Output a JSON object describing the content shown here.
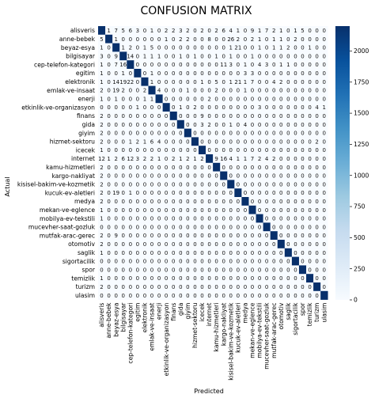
{
  "chart_data": {
    "type": "heatmap",
    "title": "CONFUSION MATRIX",
    "xlabel": "Predicted",
    "ylabel": "Actual",
    "labels": [
      "alisveris",
      "anne-bebek",
      "beyaz-esya",
      "bilgisayar",
      "cep-telefon-kategori",
      "egitim",
      "elektronik",
      "emlak-ve-insaat",
      "enerji",
      "etkinlik-ve-organizasyon",
      "finans",
      "gida",
      "giyim",
      "hizmet-sektoru",
      "icecek",
      "internet",
      "kamu-hizmetleri",
      "kargo-nakliyat",
      "kisisel-bakim-ve-kozmetik",
      "kucuk-ev-aletleri",
      "medya",
      "mekan-ve-eglence",
      "mobilya-ev-tekstili",
      "mucevher-saat-gozluk",
      "mutfak-arac-gerec",
      "otomotiv",
      "saglik",
      "sigortacilik",
      "spor",
      "temizlik",
      "turizm",
      "ulasim"
    ],
    "matrix": [
      [
        2200,
        1,
        7,
        5,
        6,
        3,
        0,
        1,
        0,
        2,
        2,
        3,
        2,
        0,
        2,
        0,
        2,
        6,
        4,
        1,
        0,
        9,
        1,
        7,
        2,
        1,
        0,
        1,
        5,
        0,
        0,
        0
      ],
      [
        5,
        2200,
        1,
        0,
        0,
        0,
        0,
        0,
        0,
        1,
        0,
        2,
        2,
        0,
        0,
        8,
        0,
        0,
        26,
        2,
        0,
        2,
        1,
        0,
        1,
        1,
        0,
        2,
        0,
        0,
        0,
        0
      ],
      [
        1,
        0,
        2200,
        1,
        2,
        0,
        1,
        5,
        0,
        0,
        0,
        0,
        0,
        0,
        0,
        0,
        0,
        0,
        1,
        21,
        0,
        0,
        1,
        0,
        1,
        1,
        2,
        0,
        0,
        1,
        0,
        0
      ],
      [
        3,
        0,
        9,
        2200,
        14,
        0,
        1,
        1,
        1,
        0,
        0,
        1,
        0,
        1,
        0,
        0,
        1,
        0,
        1,
        0,
        0,
        1,
        0,
        0,
        0,
        0,
        0,
        0,
        0,
        0,
        0,
        0
      ],
      [
        1,
        0,
        7,
        16,
        2200,
        0,
        0,
        0,
        0,
        0,
        0,
        0,
        0,
        0,
        0,
        0,
        0,
        11,
        3,
        0,
        1,
        0,
        4,
        3,
        0,
        1,
        1,
        0,
        0,
        0,
        0,
        0
      ],
      [
        1,
        0,
        0,
        1,
        0,
        2200,
        0,
        1,
        0,
        0,
        0,
        0,
        0,
        0,
        0,
        0,
        0,
        0,
        0,
        0,
        3,
        3,
        0,
        0,
        0,
        0,
        0,
        0,
        0,
        0,
        0,
        0
      ],
      [
        1,
        0,
        14,
        19,
        22,
        0,
        2200,
        1,
        0,
        0,
        0,
        0,
        0,
        0,
        1,
        0,
        5,
        0,
        1,
        21,
        1,
        7,
        0,
        0,
        4,
        2,
        0,
        0,
        0,
        0,
        0,
        0
      ],
      [
        2,
        0,
        19,
        2,
        0,
        0,
        2,
        2200,
        4,
        0,
        0,
        0,
        1,
        0,
        0,
        0,
        2,
        0,
        0,
        0,
        1,
        0,
        0,
        0,
        0,
        0,
        0,
        0,
        0,
        0,
        0,
        0
      ],
      [
        1,
        0,
        1,
        0,
        0,
        0,
        1,
        1,
        2200,
        0,
        0,
        0,
        0,
        0,
        0,
        2,
        0,
        0,
        0,
        0,
        0,
        0,
        0,
        0,
        0,
        0,
        0,
        0,
        0,
        0,
        0,
        0
      ],
      [
        0,
        0,
        0,
        0,
        0,
        1,
        0,
        0,
        0,
        2200,
        0,
        1,
        0,
        2,
        0,
        0,
        0,
        0,
        0,
        0,
        0,
        0,
        3,
        0,
        0,
        0,
        0,
        0,
        0,
        0,
        4,
        1
      ],
      [
        2,
        0,
        0,
        0,
        0,
        0,
        0,
        0,
        0,
        0,
        2200,
        0,
        0,
        0,
        9,
        0,
        0,
        0,
        0,
        0,
        0,
        0,
        0,
        0,
        0,
        0,
        0,
        0,
        0,
        0,
        0,
        0
      ],
      [
        2,
        0,
        0,
        0,
        0,
        0,
        0,
        0,
        0,
        0,
        0,
        2200,
        0,
        0,
        3,
        2,
        0,
        0,
        1,
        0,
        4,
        0,
        0,
        0,
        0,
        0,
        0,
        0,
        0,
        0,
        0,
        0
      ],
      [
        2,
        0,
        0,
        0,
        0,
        0,
        0,
        0,
        0,
        0,
        0,
        0,
        2200,
        0,
        0,
        0,
        0,
        0,
        0,
        0,
        0,
        0,
        0,
        0,
        0,
        0,
        0,
        0,
        0,
        0,
        0,
        0
      ],
      [
        2,
        0,
        0,
        0,
        1,
        2,
        1,
        6,
        4,
        0,
        0,
        0,
        0,
        2200,
        0,
        0,
        0,
        0,
        0,
        0,
        0,
        0,
        0,
        0,
        0,
        0,
        0,
        0,
        0,
        0,
        2,
        0
      ],
      [
        1,
        0,
        0,
        0,
        0,
        0,
        0,
        0,
        0,
        0,
        0,
        0,
        0,
        0,
        2200,
        0,
        0,
        0,
        0,
        0,
        0,
        0,
        0,
        0,
        0,
        0,
        0,
        0,
        0,
        0,
        0,
        0
      ],
      [
        12,
        1,
        2,
        6,
        12,
        3,
        2,
        2,
        1,
        0,
        2,
        1,
        2,
        1,
        2,
        2200,
        9,
        16,
        4,
        1,
        1,
        7,
        2,
        4,
        2,
        0,
        0,
        0,
        0,
        0,
        0,
        0
      ],
      [
        2,
        0,
        0,
        0,
        0,
        0,
        0,
        0,
        0,
        0,
        0,
        0,
        0,
        0,
        0,
        0,
        2200,
        0,
        0,
        0,
        0,
        0,
        0,
        0,
        0,
        0,
        0,
        0,
        0,
        0,
        0,
        0
      ],
      [
        2,
        0,
        0,
        0,
        0,
        0,
        0,
        0,
        0,
        0,
        0,
        0,
        0,
        0,
        0,
        0,
        0,
        2200,
        0,
        0,
        0,
        0,
        0,
        0,
        0,
        0,
        0,
        0,
        0,
        0,
        0,
        0
      ],
      [
        2,
        0,
        0,
        0,
        0,
        0,
        0,
        0,
        0,
        0,
        0,
        0,
        0,
        0,
        0,
        0,
        0,
        0,
        2200,
        0,
        0,
        0,
        0,
        0,
        0,
        0,
        0,
        0,
        0,
        0,
        0,
        0
      ],
      [
        2,
        0,
        19,
        0,
        1,
        0,
        0,
        0,
        0,
        0,
        0,
        0,
        0,
        0,
        0,
        0,
        0,
        0,
        0,
        2200,
        0,
        0,
        0,
        0,
        0,
        0,
        0,
        0,
        0,
        0,
        0,
        0
      ],
      [
        2,
        0,
        0,
        0,
        0,
        0,
        0,
        0,
        0,
        0,
        0,
        0,
        0,
        0,
        0,
        0,
        0,
        0,
        0,
        0,
        2200,
        0,
        0,
        0,
        0,
        0,
        0,
        0,
        0,
        0,
        0,
        0
      ],
      [
        1,
        0,
        0,
        0,
        0,
        0,
        0,
        0,
        0,
        0,
        0,
        0,
        0,
        0,
        0,
        0,
        0,
        0,
        0,
        0,
        0,
        2200,
        0,
        0,
        0,
        0,
        0,
        0,
        0,
        0,
        0,
        0
      ],
      [
        1,
        0,
        0,
        0,
        0,
        0,
        0,
        0,
        0,
        0,
        0,
        0,
        0,
        0,
        0,
        0,
        0,
        0,
        0,
        0,
        0,
        0,
        2200,
        0,
        0,
        0,
        0,
        0,
        0,
        0,
        0,
        0
      ],
      [
        0,
        0,
        0,
        0,
        0,
        0,
        0,
        0,
        0,
        0,
        0,
        0,
        0,
        0,
        0,
        0,
        0,
        0,
        0,
        0,
        0,
        0,
        0,
        2200,
        0,
        0,
        0,
        0,
        0,
        0,
        0,
        0
      ],
      [
        2,
        0,
        9,
        0,
        0,
        0,
        0,
        0,
        0,
        0,
        0,
        0,
        0,
        0,
        0,
        0,
        0,
        0,
        0,
        0,
        0,
        0,
        0,
        0,
        2200,
        0,
        0,
        0,
        0,
        0,
        0,
        0
      ],
      [
        2,
        0,
        0,
        0,
        0,
        0,
        0,
        0,
        0,
        0,
        0,
        0,
        0,
        0,
        0,
        0,
        0,
        0,
        0,
        0,
        0,
        0,
        0,
        0,
        0,
        2200,
        0,
        0,
        0,
        0,
        0,
        0
      ],
      [
        1,
        0,
        0,
        0,
        0,
        0,
        0,
        0,
        0,
        0,
        0,
        0,
        0,
        0,
        0,
        0,
        0,
        0,
        0,
        0,
        0,
        0,
        0,
        0,
        0,
        0,
        2200,
        0,
        0,
        0,
        0,
        0
      ],
      [
        0,
        0,
        0,
        0,
        0,
        0,
        0,
        0,
        0,
        0,
        0,
        0,
        0,
        0,
        0,
        0,
        0,
        0,
        0,
        0,
        0,
        0,
        0,
        0,
        0,
        0,
        0,
        2200,
        0,
        0,
        0,
        0
      ],
      [
        0,
        0,
        0,
        0,
        0,
        0,
        0,
        0,
        0,
        0,
        0,
        0,
        0,
        0,
        0,
        0,
        0,
        0,
        0,
        0,
        0,
        0,
        0,
        0,
        0,
        0,
        0,
        0,
        2200,
        0,
        0,
        0
      ],
      [
        1,
        0,
        0,
        0,
        0,
        0,
        0,
        0,
        0,
        0,
        0,
        0,
        0,
        0,
        0,
        0,
        0,
        0,
        0,
        0,
        0,
        0,
        0,
        0,
        0,
        0,
        0,
        0,
        0,
        2200,
        0,
        0
      ],
      [
        2,
        0,
        0,
        0,
        0,
        0,
        0,
        0,
        0,
        0,
        0,
        0,
        0,
        0,
        0,
        0,
        0,
        0,
        0,
        0,
        0,
        0,
        0,
        0,
        0,
        0,
        0,
        0,
        0,
        0,
        2200,
        0
      ],
      [
        0,
        0,
        0,
        0,
        0,
        0,
        0,
        0,
        0,
        0,
        0,
        0,
        0,
        0,
        0,
        0,
        0,
        0,
        0,
        0,
        0,
        0,
        0,
        0,
        0,
        0,
        0,
        0,
        0,
        0,
        0,
        2200
      ]
    ],
    "colorbar": {
      "min": 0,
      "max": 2200,
      "ticks": [
        0,
        250,
        500,
        750,
        1000,
        1250,
        1500,
        1750,
        2000
      ]
    },
    "colormap": [
      "#f7fbff",
      "#deebf7",
      "#c6dbef",
      "#9ecae1",
      "#6baed6",
      "#4292c6",
      "#2171b5",
      "#08519c",
      "#08306b"
    ]
  }
}
